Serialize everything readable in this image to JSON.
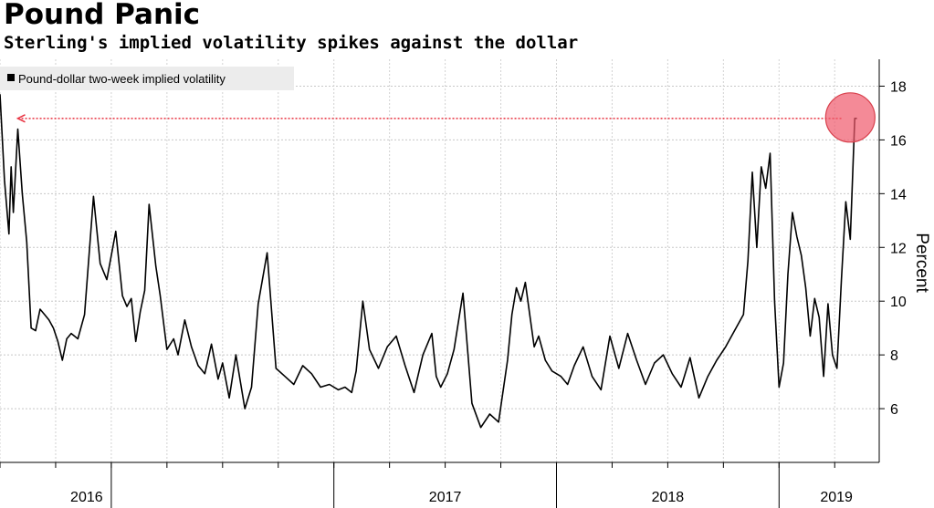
{
  "title": "Pound Panic",
  "subtitle": "Sterling's implied volatility spikes against the dollar",
  "chart_data": {
    "type": "line",
    "series": [
      {
        "name": "Pound-dollar two-week implied volatility",
        "color": "#000000",
        "x": [
          2015.5,
          2015.52,
          2015.54,
          2015.55,
          2015.56,
          2015.58,
          2015.6,
          2015.62,
          2015.64,
          2015.66,
          2015.68,
          2015.7,
          2015.72,
          2015.74,
          2015.76,
          2015.78,
          2015.8,
          2015.82,
          2015.85,
          2015.88,
          2015.92,
          2015.95,
          2015.98,
          2016.02,
          2016.05,
          2016.07,
          2016.09,
          2016.11,
          2016.13,
          2016.15,
          2016.17,
          2016.2,
          2016.22,
          2016.25,
          2016.28,
          2016.3,
          2016.33,
          2016.36,
          2016.39,
          2016.42,
          2016.45,
          2016.48,
          2016.5,
          2016.53,
          2016.56,
          2016.6,
          2016.63,
          2016.66,
          2016.7,
          2016.74,
          2016.78,
          2016.82,
          2016.86,
          2016.9,
          2016.94,
          2016.98,
          2017.02,
          2017.05,
          2017.08,
          2017.1,
          2017.13,
          2017.16,
          2017.2,
          2017.24,
          2017.28,
          2017.32,
          2017.36,
          2017.4,
          2017.44,
          2017.46,
          2017.48,
          2017.51,
          2017.54,
          2017.58,
          2017.62,
          2017.66,
          2017.7,
          2017.74,
          2017.78,
          2017.8,
          2017.82,
          2017.84,
          2017.86,
          2017.88,
          2017.9,
          2017.92,
          2017.95,
          2017.98,
          2018.02,
          2018.05,
          2018.08,
          2018.12,
          2018.16,
          2018.2,
          2018.24,
          2018.28,
          2018.32,
          2018.36,
          2018.4,
          2018.44,
          2018.48,
          2018.52,
          2018.56,
          2018.6,
          2018.64,
          2018.68,
          2018.72,
          2018.76,
          2018.8,
          2018.84,
          2018.86,
          2018.88,
          2018.9,
          2018.92,
          2018.94,
          2018.96,
          2018.98,
          2019.0,
          2019.02,
          2019.04,
          2019.06,
          2019.08,
          2019.1,
          2019.12,
          2019.14,
          2019.16,
          2019.18,
          2019.2,
          2019.22,
          2019.24,
          2019.26,
          2019.28,
          2019.3,
          2019.32,
          2019.34,
          2019.35
        ],
        "values": [
          17.7,
          14.5,
          12.5,
          15.0,
          13.3,
          16.4,
          14.0,
          12.2,
          9.0,
          8.9,
          9.7,
          9.5,
          9.3,
          9.0,
          8.5,
          7.8,
          8.6,
          8.8,
          8.6,
          9.5,
          13.9,
          11.4,
          10.8,
          12.6,
          10.2,
          9.8,
          10.1,
          8.5,
          9.6,
          10.4,
          13.6,
          11.3,
          10.2,
          8.2,
          8.6,
          8.0,
          9.3,
          8.3,
          7.6,
          7.3,
          8.4,
          7.1,
          7.7,
          6.4,
          8.0,
          6.0,
          6.8,
          9.9,
          11.8,
          7.5,
          7.2,
          6.9,
          7.6,
          7.3,
          6.8,
          6.9,
          6.7,
          6.8,
          6.6,
          7.4,
          10.0,
          8.2,
          7.5,
          8.3,
          8.7,
          7.6,
          6.6,
          8.0,
          8.8,
          7.2,
          6.8,
          7.3,
          8.2,
          10.3,
          6.2,
          5.3,
          5.8,
          5.5,
          7.8,
          9.5,
          10.5,
          10.0,
          10.7,
          9.5,
          8.3,
          8.7,
          7.8,
          7.4,
          7.2,
          6.9,
          7.6,
          8.3,
          7.2,
          6.7,
          8.7,
          7.5,
          8.8,
          7.8,
          6.9,
          7.7,
          8.0,
          7.3,
          6.8,
          7.9,
          6.4,
          7.2,
          7.8,
          8.3,
          8.9,
          9.5,
          11.5,
          14.8,
          12.0,
          15.0,
          14.2,
          15.5,
          10.0,
          6.8,
          7.7,
          11.0,
          13.3,
          12.4,
          11.7,
          10.5,
          8.7,
          10.1,
          9.4,
          7.2,
          9.9,
          8.0,
          7.5,
          10.8,
          13.7,
          12.3,
          16.8,
          16.8
        ]
      }
    ],
    "xlim": [
      2015.5,
      2019.45
    ],
    "x_ticks": [
      {
        "label": "2016",
        "at": 2016.0
      },
      {
        "label": "2017",
        "at": 2017.0
      },
      {
        "label": "2018",
        "at": 2018.0
      },
      {
        "label": "2019",
        "at": 2019.0
      }
    ],
    "ylim": [
      4.0,
      19.0
    ],
    "yticks": [
      "6",
      "8",
      "10",
      "12",
      "14",
      "16",
      "18"
    ],
    "ylabel": "Percent",
    "grid": true,
    "legend_position": "top-left",
    "annotations": {
      "circle": {
        "x": 2019.32,
        "y": 16.8,
        "color": "#f0596b"
      },
      "arrow": {
        "from_x": 2019.28,
        "to_x": 2015.58,
        "y": 16.8,
        "color": "#e8303f"
      }
    }
  }
}
